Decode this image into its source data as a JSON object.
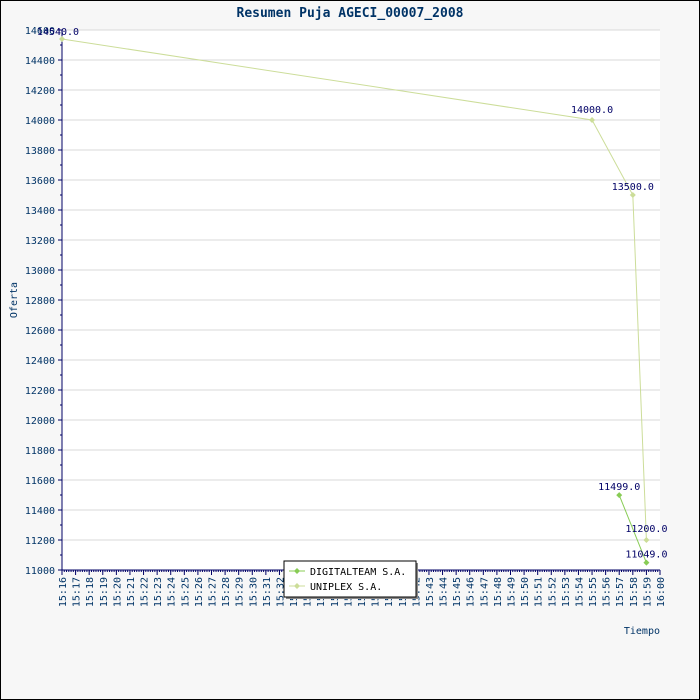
{
  "chart_data": {
    "type": "line",
    "title": "Resumen Puja AGECI_00007_2008",
    "xlabel": "Tiempo",
    "ylabel": "Oferta",
    "ylim": [
      11000,
      14600
    ],
    "yticks": [
      11000,
      11200,
      11400,
      11600,
      11800,
      12000,
      12200,
      12400,
      12600,
      12800,
      13000,
      13200,
      13400,
      13600,
      13800,
      14000,
      14200,
      14400,
      14600
    ],
    "ytick_labels": [
      "11000",
      "11200",
      "11400",
      "11600",
      "11800",
      "12000",
      "12200",
      "12400",
      "12600",
      "12800",
      "13000",
      "13200",
      "13400",
      "13600",
      "13800",
      "14000",
      "14200",
      "14400",
      "14600"
    ],
    "x_range_minutes": [
      916,
      960
    ],
    "x_tick_labels": [
      "15:16",
      "15:17",
      "15:18",
      "15:19",
      "15:20",
      "15:21",
      "15:22",
      "15:23",
      "15:24",
      "15:25",
      "15:26",
      "15:27",
      "15:28",
      "15:29",
      "15:30",
      "15:31",
      "15:32",
      "15:33",
      "15:34",
      "15:35",
      "15:36",
      "15:37",
      "15:38",
      "15:39",
      "15:40",
      "15:41",
      "15:42",
      "15:43",
      "15:44",
      "15:45",
      "15:46",
      "15:47",
      "15:48",
      "15:49",
      "15:50",
      "15:51",
      "15:52",
      "15:53",
      "15:54",
      "15:55",
      "15:56",
      "15:57",
      "15:58",
      "15:59",
      "16:00"
    ],
    "grid": true,
    "legend_position": "bottom-center",
    "series": [
      {
        "name": "DIGITALTEAM S.A.",
        "color": "#88cc55",
        "points": [
          {
            "x": "15:57",
            "y": 11499.0,
            "label": "11499.0"
          },
          {
            "x": "15:59",
            "y": 11049.0,
            "label": "11049.0"
          }
        ]
      },
      {
        "name": "UNIPLEX S.A.",
        "color": "#ccdd99",
        "points": [
          {
            "x": "15:16",
            "y": 14540.0,
            "label": "14540.0"
          },
          {
            "x": "15:55",
            "y": 14000.0,
            "label": "14000.0"
          },
          {
            "x": "15:58",
            "y": 13500.0,
            "label": "13500.0"
          },
          {
            "x": "15:59",
            "y": 11200.0,
            "label": "11200.0"
          }
        ]
      }
    ]
  }
}
